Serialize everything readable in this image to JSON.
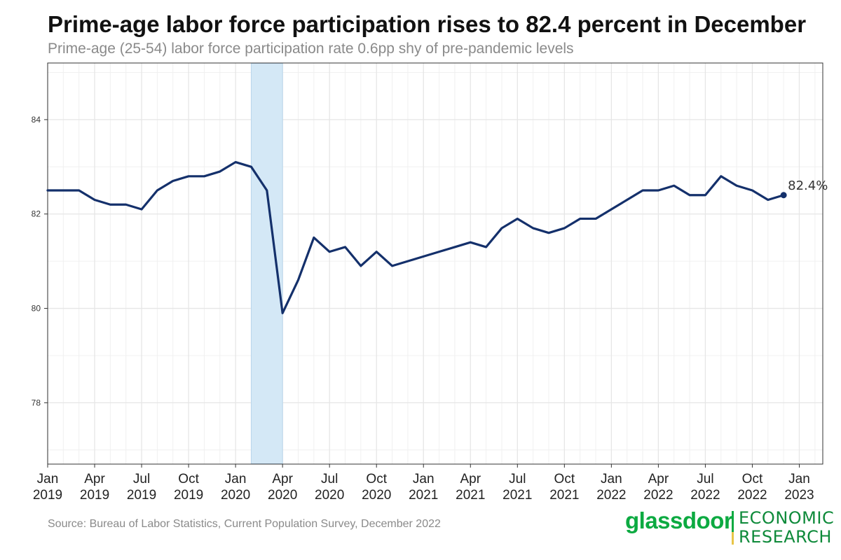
{
  "header": {
    "title": "Prime-age labor force participation rises to 82.4 percent in December",
    "subtitle": "Prime-age (25-54) labor force participation rate 0.6pp shy of pre-pandemic levels"
  },
  "footer": {
    "source": "Source: Bureau of Labor Statistics, Current Population Survey, December 2022"
  },
  "logo": {
    "wordmark": "glassdoor",
    "line1": "ECONOMIC",
    "line2": "RESEARCH"
  },
  "colors": {
    "line": "#14306b",
    "recession": "#d4e8f6",
    "grid": "#e6e6e6",
    "brand_green": "#0caa41"
  },
  "chart_data": {
    "type": "line",
    "title": "Prime-age labor force participation rises to 82.4 percent in December",
    "xlabel": "",
    "ylabel": "",
    "ylim": [
      76.7,
      85.2
    ],
    "yticks": [
      78,
      80,
      82,
      84
    ],
    "xlim_months": [
      0,
      49.5
    ],
    "xticks": [
      {
        "month": 0,
        "label1": "Jan",
        "label2": "2019"
      },
      {
        "month": 3,
        "label1": "Apr",
        "label2": "2019"
      },
      {
        "month": 6,
        "label1": "Jul",
        "label2": "2019"
      },
      {
        "month": 9,
        "label1": "Oct",
        "label2": "2019"
      },
      {
        "month": 12,
        "label1": "Jan",
        "label2": "2020"
      },
      {
        "month": 15,
        "label1": "Apr",
        "label2": "2020"
      },
      {
        "month": 18,
        "label1": "Jul",
        "label2": "2020"
      },
      {
        "month": 21,
        "label1": "Oct",
        "label2": "2020"
      },
      {
        "month": 24,
        "label1": "Jan",
        "label2": "2021"
      },
      {
        "month": 27,
        "label1": "Apr",
        "label2": "2021"
      },
      {
        "month": 30,
        "label1": "Jul",
        "label2": "2021"
      },
      {
        "month": 33,
        "label1": "Oct",
        "label2": "2021"
      },
      {
        "month": 36,
        "label1": "Jan",
        "label2": "2022"
      },
      {
        "month": 39,
        "label1": "Apr",
        "label2": "2022"
      },
      {
        "month": 42,
        "label1": "Jul",
        "label2": "2022"
      },
      {
        "month": 45,
        "label1": "Oct",
        "label2": "2022"
      },
      {
        "month": 48,
        "label1": "Jan",
        "label2": "2023"
      }
    ],
    "recession_band": {
      "start_month": 13,
      "end_month": 15
    },
    "series": [
      {
        "name": "Prime-age (25-54) labor force participation rate",
        "start": "Jan 2019",
        "frequency": "monthly",
        "values": [
          82.5,
          82.5,
          82.5,
          82.3,
          82.2,
          82.2,
          82.1,
          82.5,
          82.7,
          82.8,
          82.8,
          82.9,
          83.1,
          83.0,
          82.5,
          79.9,
          80.6,
          81.5,
          81.2,
          81.3,
          80.9,
          81.2,
          80.9,
          81.0,
          81.1,
          81.2,
          81.3,
          81.4,
          81.3,
          81.7,
          81.9,
          81.7,
          81.6,
          81.7,
          81.9,
          81.9,
          82.1,
          82.3,
          82.5,
          82.5,
          82.6,
          82.4,
          82.4,
          82.8,
          82.6,
          82.5,
          82.3,
          82.4
        ]
      }
    ],
    "end_label": "82.4%"
  }
}
